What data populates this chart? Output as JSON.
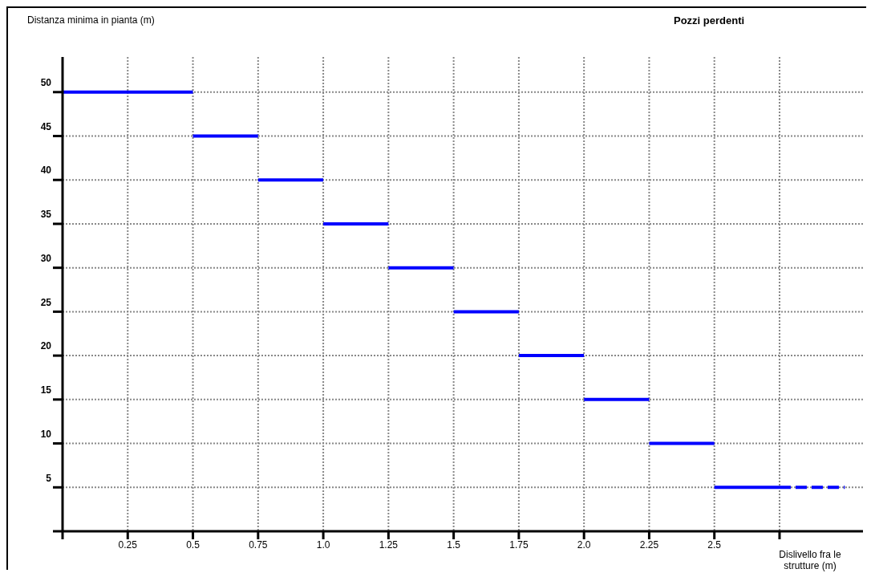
{
  "chart_data": {
    "type": "line",
    "title": "Pozzi perdenti",
    "ylabel": "Distanza minima in pianta (m)",
    "xlabel": "Dislivello fra le strutture (m)",
    "series": [
      {
        "color": "#0000ff",
        "line_style": "solid",
        "x": [
          0,
          0.5
        ],
        "values": [
          50,
          50
        ]
      },
      {
        "color": "#0000ff",
        "line_style": "solid",
        "x": [
          0.5,
          0.75
        ],
        "values": [
          45,
          45
        ]
      },
      {
        "color": "#0000ff",
        "line_style": "solid",
        "x": [
          0.75,
          1.0
        ],
        "values": [
          40,
          40
        ]
      },
      {
        "color": "#0000ff",
        "line_style": "solid",
        "x": [
          1.0,
          1.25
        ],
        "values": [
          35,
          35
        ]
      },
      {
        "color": "#0000ff",
        "line_style": "solid",
        "x": [
          1.25,
          1.5
        ],
        "values": [
          30,
          30
        ]
      },
      {
        "color": "#0000ff",
        "line_style": "solid",
        "x": [
          1.5,
          1.75
        ],
        "values": [
          25,
          25
        ]
      },
      {
        "color": "#0000ff",
        "line_style": "solid",
        "x": [
          1.75,
          2.0
        ],
        "values": [
          20,
          20
        ]
      },
      {
        "color": "#0000ff",
        "line_style": "solid",
        "x": [
          2.0,
          2.25
        ],
        "values": [
          15,
          15
        ]
      },
      {
        "color": "#0000ff",
        "line_style": "solid",
        "x": [
          2.25,
          2.5
        ],
        "values": [
          10,
          10
        ]
      },
      {
        "color": "#0000ff",
        "line_style": "solid",
        "x": [
          2.5,
          2.75
        ],
        "values": [
          5,
          5
        ]
      },
      {
        "color": "#0000ff",
        "line_style": "dashed",
        "x": [
          2.75,
          3.0
        ],
        "values": [
          5,
          5
        ]
      }
    ],
    "xlim": [
      0,
      3.07
    ],
    "ylim": [
      0,
      54
    ],
    "xticks": [
      {
        "value": 0,
        "label": null
      },
      0.25,
      0.5,
      0.75,
      {
        "value": 1,
        "label": "1.0"
      },
      1.25,
      1.5,
      1.75,
      {
        "value": 2,
        "label": "2.0"
      },
      2.25,
      2.5,
      {
        "value": 2.75,
        "label": null
      }
    ],
    "yticks": [
      {
        "value": 0,
        "label": null
      },
      5,
      10,
      15,
      20,
      25,
      30,
      35,
      40,
      45,
      50
    ],
    "grid": true,
    "marker": "none"
  }
}
